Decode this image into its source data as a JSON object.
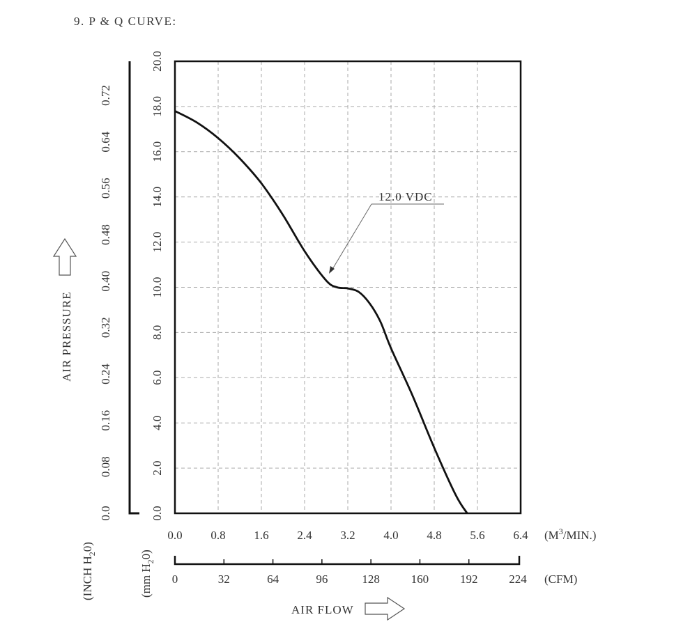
{
  "page": {
    "heading": "9. P & Q CURVE:"
  },
  "labels": {
    "air_pressure": "AIR PRESSURE",
    "air_flow": "AIR FLOW",
    "unit_inch_prefix": "(INCH H",
    "unit_inch_sub": "2",
    "unit_inch_suffix": "0)",
    "unit_mm_prefix": "(mm H",
    "unit_mm_sub": "2",
    "unit_mm_suffix": "0)",
    "unit_m3_prefix": "(M",
    "unit_m3_sup": "3",
    "unit_m3_suffix": "/MIN.)",
    "unit_cfm": "(CFM)"
  },
  "colors": {
    "grid": "#aaaaaa",
    "axis": "#111111",
    "curve": "#111111",
    "text": "#333333"
  },
  "chart_data": {
    "type": "line",
    "title": "9. P & Q CURVE:",
    "xlabel": "AIR FLOW",
    "ylabel": "AIR PRESSURE",
    "x_unit": "M3/MIN.",
    "y_unit": "mm H2O",
    "xlim": [
      0,
      6.4
    ],
    "ylim": [
      0,
      20
    ],
    "grid": true,
    "x_ticks": [
      "0.0",
      "0.8",
      "1.6",
      "2.4",
      "3.2",
      "4.0",
      "4.8",
      "5.6",
      "6.4"
    ],
    "y_ticks": [
      "0.0",
      "2.0",
      "4.0",
      "6.0",
      "8.0",
      "10.0",
      "12.0",
      "14.0",
      "16.0",
      "18.0",
      "20.0"
    ],
    "secondary_x_ticks": [
      "0",
      "32",
      "64",
      "96",
      "128",
      "160",
      "192",
      "224"
    ],
    "secondary_x_unit": "CFM",
    "secondary_y_ticks": [
      "0.0",
      "0.08",
      "0.16",
      "0.24",
      "0.32",
      "0.40",
      "0.48",
      "0.56",
      "0.64",
      "0.72"
    ],
    "secondary_y_unit": "INCH H2O",
    "series": [
      {
        "name": "12.0 VDC",
        "x": [
          0.0,
          0.4,
          0.8,
          1.2,
          1.6,
          2.0,
          2.4,
          2.8,
          3.0,
          3.2,
          3.4,
          3.6,
          3.8,
          4.0,
          4.4,
          4.8,
          5.2,
          5.41
        ],
        "y": [
          17.8,
          17.3,
          16.6,
          15.7,
          14.6,
          13.2,
          11.6,
          10.3,
          10.0,
          9.95,
          9.8,
          9.3,
          8.5,
          7.3,
          5.2,
          2.9,
          0.8,
          0.0
        ]
      }
    ],
    "annotations": [
      {
        "text": "12.0 VDC",
        "x": 2.85,
        "y": 10.5
      }
    ]
  }
}
